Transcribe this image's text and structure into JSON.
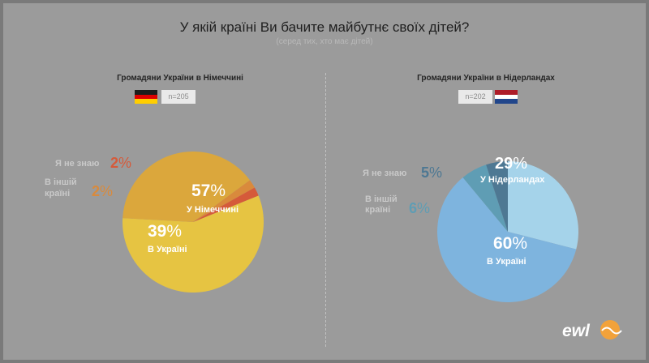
{
  "title": "У якій країні Ви бачите майбутнє своїх дітей?",
  "subtitle": "(серед тих, хто має дітей)",
  "logo": "ewl",
  "colors": {
    "background": "#9b9b9b",
    "de_germany": "#e6c442",
    "de_ukraine": "#dba73c",
    "de_other": "#d98a3c",
    "de_dontknow": "#d55a3a",
    "nl_netherlands": "#a5d3ea",
    "nl_ukraine": "#7eb4de",
    "nl_other": "#5f9db4",
    "nl_dontknow": "#4e7893",
    "label_dark": "#ffffff",
    "label_muted": "#c9c9c9"
  },
  "chart_data": [
    {
      "type": "pie",
      "title": "Громадяни України в Німеччині",
      "n": "n=205",
      "flag": "germany",
      "slices": [
        {
          "label": "У Німеччині",
          "value": 57
        },
        {
          "label": "В Україні",
          "value": 39
        },
        {
          "label": "В іншій країні",
          "value": 2
        },
        {
          "label": "Я не знаю",
          "value": 2
        }
      ]
    },
    {
      "type": "pie",
      "title": "Громадяни України в Нідерландах",
      "n": "n=202",
      "flag": "netherlands",
      "slices": [
        {
          "label": "У Нідерландах",
          "value": 29
        },
        {
          "label": "В Україні",
          "value": 60
        },
        {
          "label": "В іншій країні",
          "value": 6
        },
        {
          "label": "Я не знаю",
          "value": 5
        }
      ]
    }
  ]
}
